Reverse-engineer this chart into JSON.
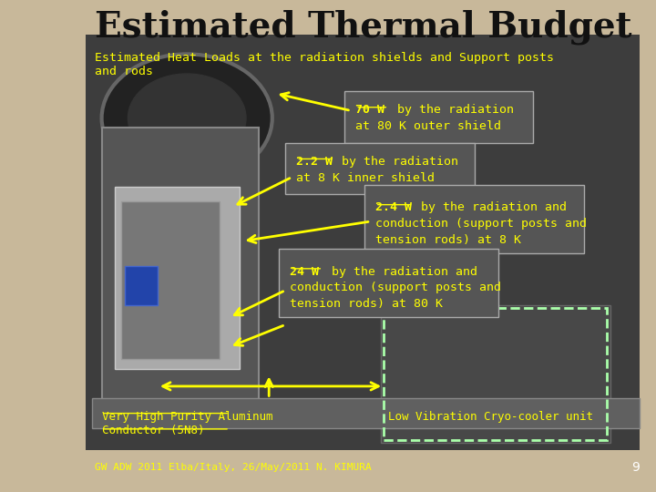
{
  "title": "Estimated Thermal Budget",
  "subtitle": "Estimated Heat Loads at the radiation shields and Support posts\nand rods",
  "slide_bg": "#c8b89a",
  "title_color": "#111111",
  "subtitle_color": "#ffff00",
  "annotation_color": "#ffff00",
  "footer": "GW ADW 2011 Elba/Italy, 26/May/2011 N. KIMURA",
  "footer_color": "#ffff00",
  "page_number": "9",
  "box_face": "#555555",
  "box_edge": "#aaaaaa"
}
